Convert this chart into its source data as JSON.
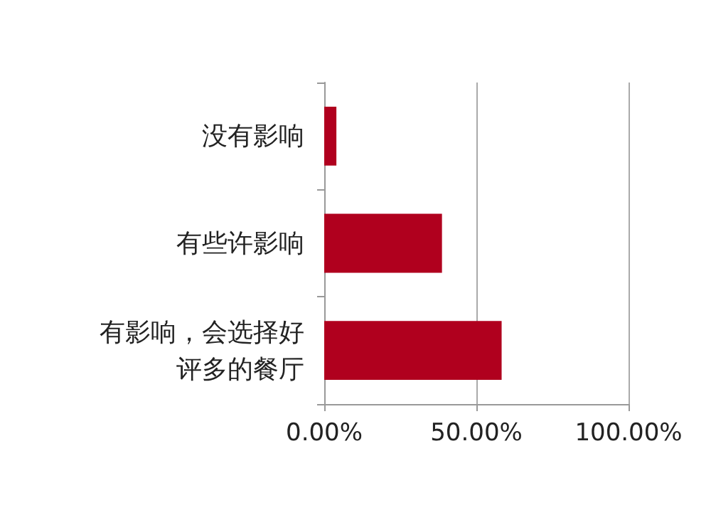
{
  "chart_data": {
    "type": "bar",
    "orientation": "horizontal",
    "categories": [
      "没有影响",
      "有些许影响",
      "有影响，会选择好评多的餐厅"
    ],
    "values": [
      4.0,
      38.7,
      58.3
    ],
    "color": "#b0001e",
    "xlim": [
      0,
      100
    ],
    "xticks": [
      {
        "value": 0,
        "label": "0.00%"
      },
      {
        "value": 50,
        "label": "50.00%"
      },
      {
        "value": 100,
        "label": "100.00%"
      }
    ],
    "grid": "x"
  }
}
